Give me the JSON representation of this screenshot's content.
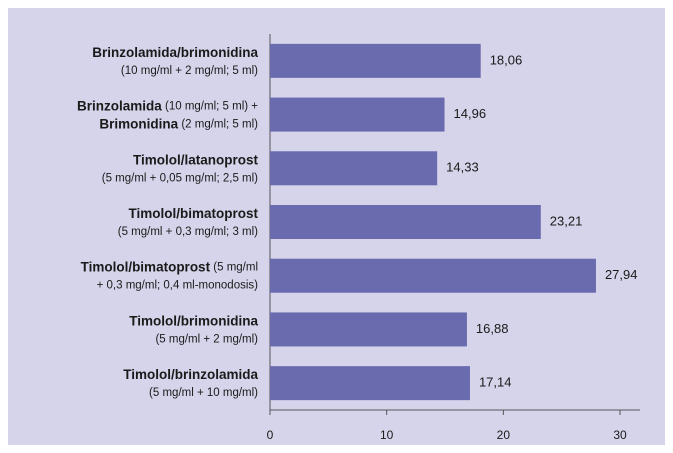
{
  "chart_data": {
    "type": "bar",
    "orientation": "horizontal",
    "categories": [
      [
        [
          {
            "text": "Brinzolamida/brimonidina",
            "bold": true
          }
        ],
        [
          {
            "text": "(10 mg/ml + 2 mg/ml; 5 ml)",
            "bold": false
          }
        ]
      ],
      [
        [
          {
            "text": "Brinzolamida",
            "bold": true
          },
          {
            "text": " (10 mg/ml; 5 ml) +",
            "bold": false
          }
        ],
        [
          {
            "text": "Brimonidina",
            "bold": true
          },
          {
            "text": " (2 mg/ml; 5 ml)",
            "bold": false
          }
        ]
      ],
      [
        [
          {
            "text": "Timolol/latanoprost",
            "bold": true
          }
        ],
        [
          {
            "text": "(5 mg/ml + 0,05 mg/ml; 2,5 ml)",
            "bold": false
          }
        ]
      ],
      [
        [
          {
            "text": "Timolol/bimatoprost",
            "bold": true
          }
        ],
        [
          {
            "text": "(5 mg/ml + 0,3 mg/ml; 3 ml)",
            "bold": false
          }
        ]
      ],
      [
        [
          {
            "text": "Timolol/bimatoprost",
            "bold": true
          },
          {
            "text": " (5 mg/ml",
            "bold": false
          }
        ],
        [
          {
            "text": "+ 0,3 mg/ml; 0,4 ml-monodosis)",
            "bold": false
          }
        ]
      ],
      [
        [
          {
            "text": "Timolol/brimonidina",
            "bold": true
          }
        ],
        [
          {
            "text": "(5 mg/ml + 2 mg/ml)",
            "bold": false
          }
        ]
      ],
      [
        [
          {
            "text": "Timolol/brinzolamida",
            "bold": true
          }
        ],
        [
          {
            "text": "(5 mg/ml + 10 mg/ml)",
            "bold": false
          }
        ]
      ]
    ],
    "values": [
      18.06,
      14.96,
      14.33,
      23.21,
      27.94,
      16.88,
      17.14
    ],
    "value_labels": [
      "18,06",
      "14,96",
      "14,33",
      "23,21",
      "27,94",
      "16,88",
      "17,14"
    ],
    "color": "#6a6aaf",
    "xlim": [
      0,
      30
    ],
    "xticks": [
      0,
      10,
      20,
      30
    ]
  }
}
